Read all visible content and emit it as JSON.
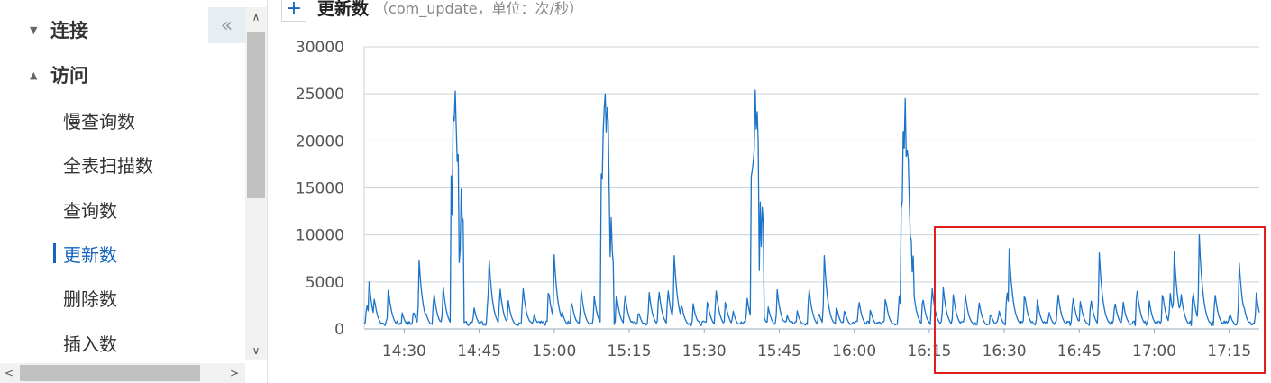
{
  "sidebar": {
    "groups": [
      {
        "label": "连接",
        "expanded": false,
        "arrow": "▼"
      },
      {
        "label": "访问",
        "expanded": true,
        "arrow": "▲"
      }
    ],
    "items": [
      {
        "label": "慢查询数",
        "active": false
      },
      {
        "label": "全表扫描数",
        "active": false
      },
      {
        "label": "查询数",
        "active": false
      },
      {
        "label": "更新数",
        "active": true
      },
      {
        "label": "删除数",
        "active": false
      },
      {
        "label": "插入数",
        "active": false
      }
    ],
    "collapse_icon": "«",
    "scroll_up": "∧",
    "scroll_down": "∨",
    "scroll_left": "<",
    "scroll_right": ">"
  },
  "chart_header": {
    "expand_icon": "+",
    "title": "更新数",
    "subtitle": "（com_update，单位：次/秒）"
  },
  "chart_data": {
    "type": "line",
    "title": "更新数",
    "ylim": [
      0,
      30000
    ],
    "yticks": [
      "30000",
      "25000",
      "20000",
      "15000",
      "10000",
      "5000",
      "0"
    ],
    "xticks": [
      "14:30",
      "14:45",
      "15:00",
      "15:15",
      "15:30",
      "15:45",
      "16:00",
      "16:15",
      "16:30",
      "16:45",
      "17:00",
      "17:15"
    ],
    "x_range": [
      "14:22",
      "17:21"
    ],
    "grid": true,
    "line_color": "#1a73c9",
    "major_spikes": [
      {
        "time": "14:40",
        "peak": 25300
      },
      {
        "time": "15:10",
        "peak": 25000
      },
      {
        "time": "15:40",
        "peak": 25400
      },
      {
        "time": "16:10",
        "peak": 24500
      }
    ],
    "minor_peaks": [
      {
        "time": "14:23",
        "value": 5000
      },
      {
        "time": "14:33",
        "value": 7300
      },
      {
        "time": "14:47",
        "value": 7300
      },
      {
        "time": "15:00",
        "value": 7900
      },
      {
        "time": "15:24",
        "value": 7800
      },
      {
        "time": "15:54",
        "value": 7800
      },
      {
        "time": "16:31",
        "value": 8500
      },
      {
        "time": "16:49",
        "value": 8100
      },
      {
        "time": "17:04",
        "value": 8200
      },
      {
        "time": "17:09",
        "value": 10000
      },
      {
        "time": "17:17",
        "value": 7000
      }
    ]
  },
  "highlight": {
    "color": "#e02020"
  }
}
